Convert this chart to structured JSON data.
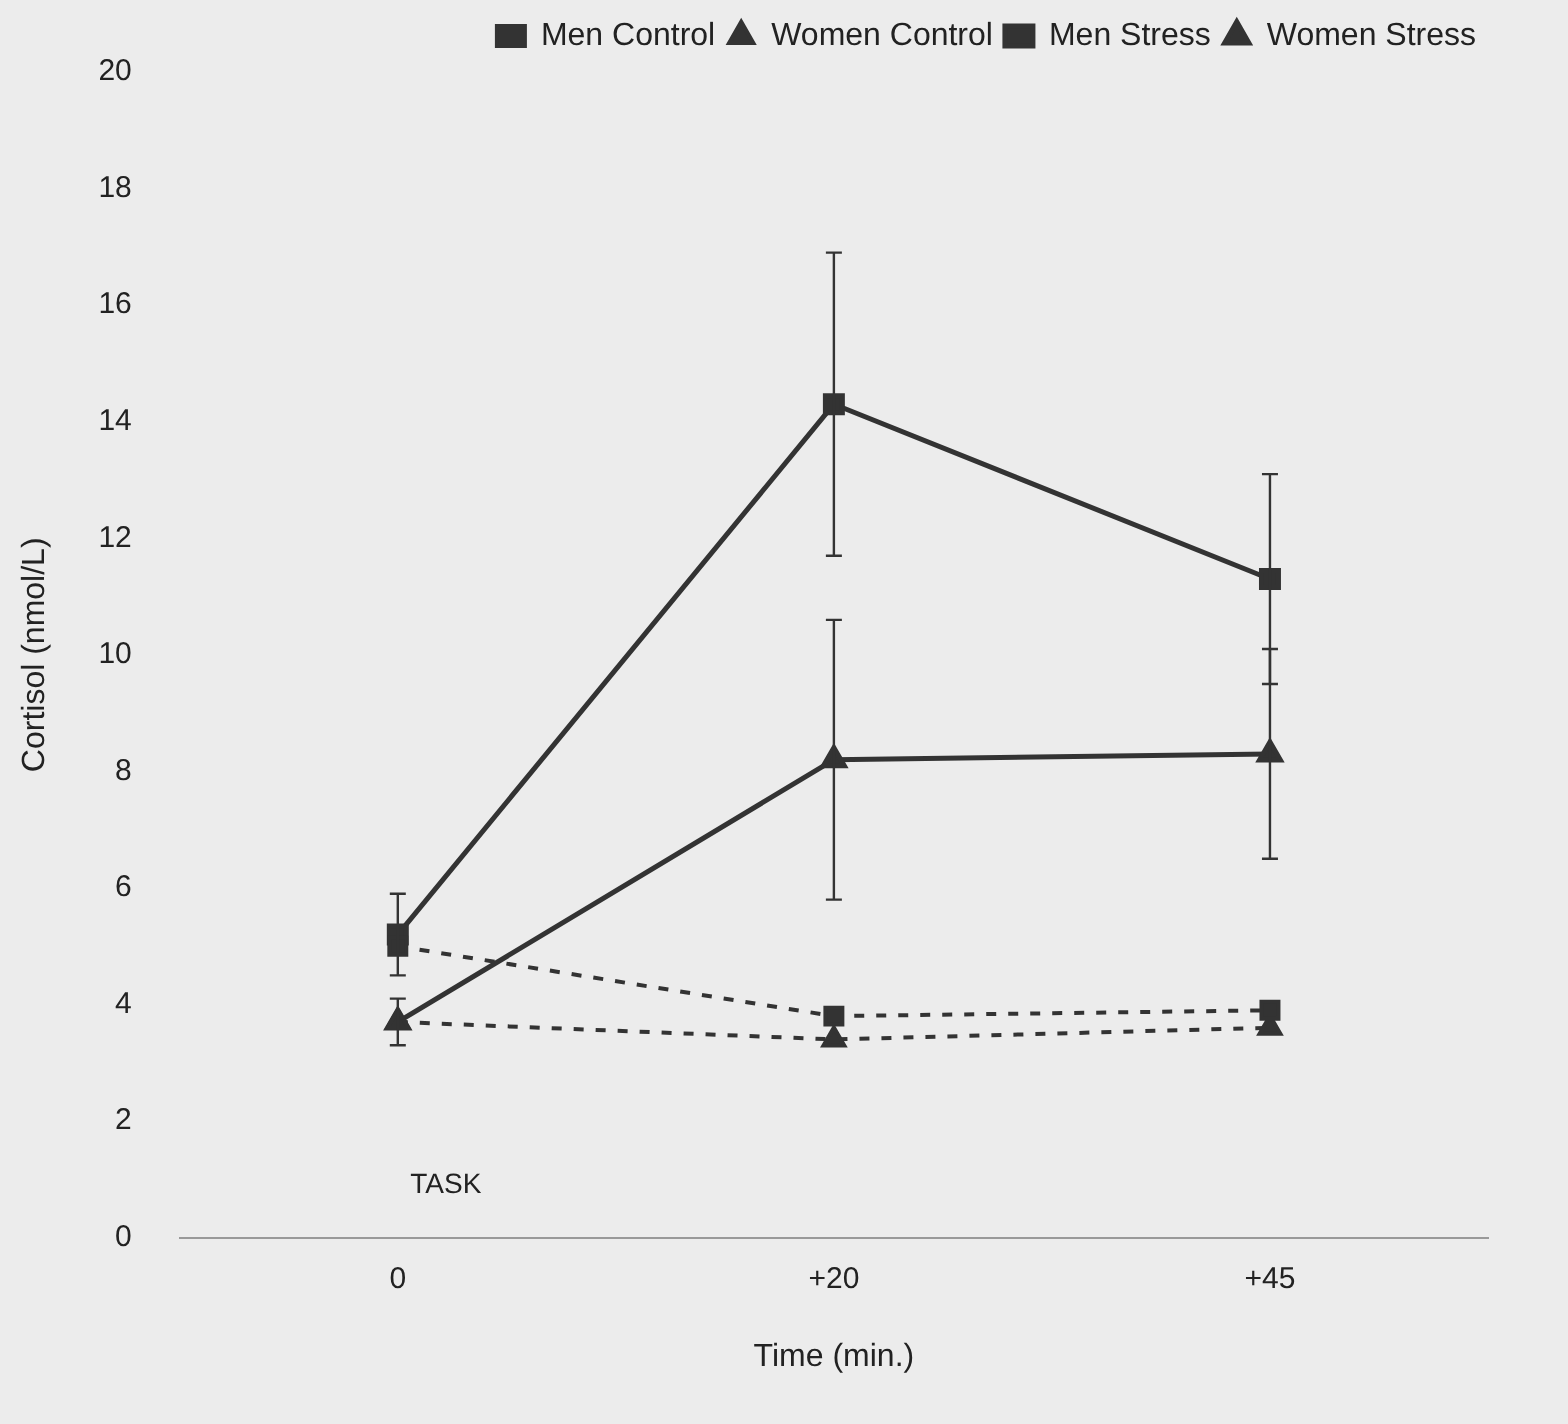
{
  "chart_data": {
    "type": "line",
    "xlabel": "Time (min.)",
    "ylabel": "Cortisol (nmol/L)",
    "categories": [
      "0",
      "+20",
      "+45"
    ],
    "series": [
      {
        "name": "Men Stress",
        "color": "#333333",
        "marker": "square",
        "line_style": "solid",
        "values": [
          5.2,
          14.3,
          11.3
        ],
        "errors": [
          0.7,
          2.6,
          1.8
        ]
      },
      {
        "name": "Men Control",
        "color": "#333333",
        "marker": "square",
        "line_style": "dashed",
        "values": [
          5.0,
          3.8,
          3.9
        ]
      },
      {
        "name": "Women Stress",
        "color": "#333333",
        "marker": "triangle",
        "line_style": "solid",
        "values": [
          3.7,
          8.2,
          8.3
        ],
        "errors": [
          0.4,
          2.4,
          1.8
        ]
      },
      {
        "name": "Women Control",
        "color": "#333333",
        "marker": "triangle",
        "line_style": "dashed",
        "values": [
          3.7,
          3.4,
          3.6
        ]
      }
    ],
    "ylim": [
      0,
      20
    ],
    "yticks": [
      0,
      2,
      4,
      6,
      8,
      10,
      12,
      14,
      16,
      18,
      20
    ],
    "grid": false,
    "legend": "top right",
    "annotations": [
      "TASK"
    ]
  }
}
